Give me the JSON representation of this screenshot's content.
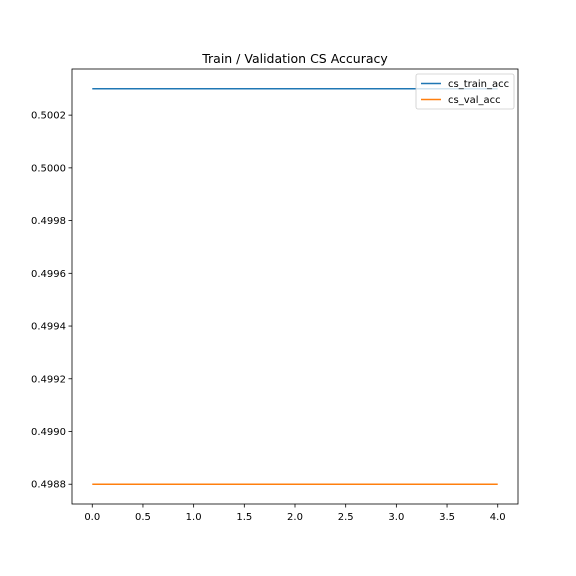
{
  "chart_data": {
    "type": "line",
    "title": "Train / Validation CS Accuracy",
    "xlabel": "",
    "ylabel": "",
    "x": [
      0,
      1,
      2,
      3,
      4
    ],
    "series": [
      {
        "name": "cs_train_acc",
        "color": "#1f77b4",
        "values": [
          0.5003,
          0.5003,
          0.5003,
          0.5003,
          0.5003
        ]
      },
      {
        "name": "cs_val_acc",
        "color": "#ff7f0e",
        "values": [
          0.4988,
          0.4988,
          0.4988,
          0.4988,
          0.4988
        ]
      }
    ],
    "xlim": [
      -0.2,
      4.2
    ],
    "ylim": [
      0.498725,
      0.500375
    ],
    "xticks": [
      0.0,
      0.5,
      1.0,
      1.5,
      2.0,
      2.5,
      3.0,
      3.5,
      4.0
    ],
    "xtick_labels": [
      "0.0",
      "0.5",
      "1.0",
      "1.5",
      "2.0",
      "2.5",
      "3.0",
      "3.5",
      "4.0"
    ],
    "yticks": [
      0.4988,
      0.499,
      0.4992,
      0.4994,
      0.4996,
      0.4998,
      0.5,
      0.5002
    ],
    "ytick_labels": [
      "0.4988",
      "0.4990",
      "0.4992",
      "0.4994",
      "0.4996",
      "0.4998",
      "0.5000",
      "0.5002"
    ],
    "grid": false,
    "legend_position": "top-right"
  }
}
